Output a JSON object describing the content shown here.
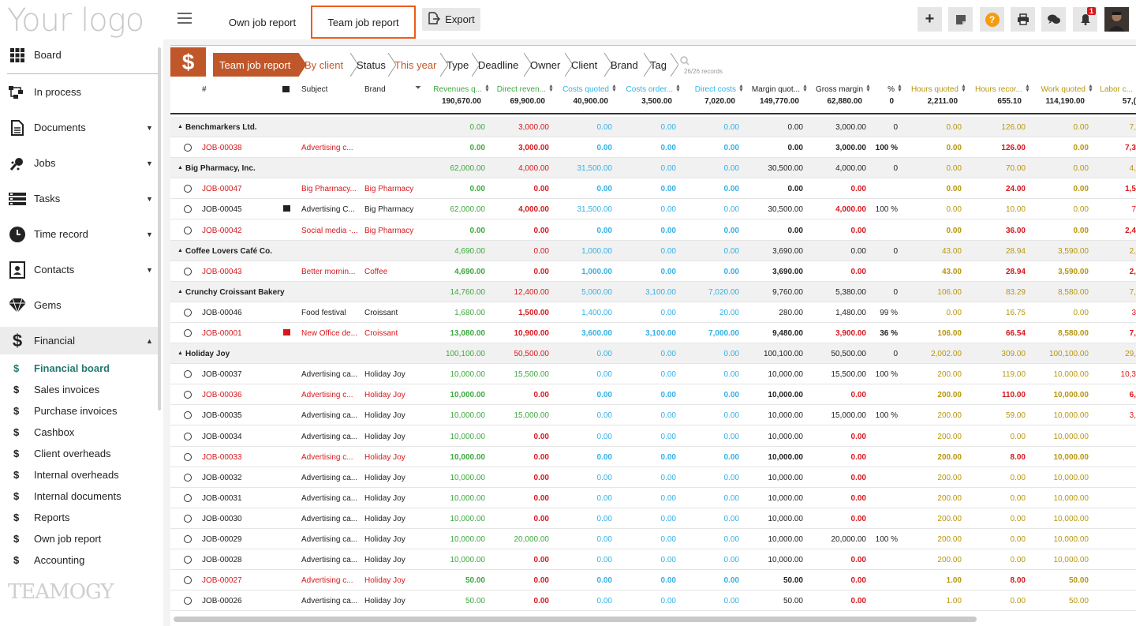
{
  "app": {
    "logo": "Your logo",
    "brand": "TEAMOGY"
  },
  "topbar": {
    "tabs": [
      "Own job report",
      "Team job report"
    ],
    "export_label": "Export",
    "notif_count": "1"
  },
  "sidebar": {
    "items": [
      "Board",
      "In process",
      "Documents",
      "Jobs",
      "Tasks",
      "Time record",
      "Contacts",
      "Gems",
      "Financial"
    ],
    "financial_sub": [
      "Financial board",
      "Sales invoices",
      "Purchase invoices",
      "Cashbox",
      "Client overheads",
      "Internal overheads",
      "Internal documents",
      "Reports",
      "Own job report",
      "Accounting"
    ]
  },
  "breadcrumbs": [
    "Team job report",
    "By client",
    "Status",
    "This year",
    "Type",
    "Deadline",
    "Owner",
    "Client",
    "Brand",
    "Tag"
  ],
  "records": "26/26 records",
  "columns": [
    "#",
    "Subject",
    "Brand",
    "Revenues q...",
    "Direct reven...",
    "Costs quoted",
    "Costs order...",
    "Direct costs",
    "Margin quot...",
    "Gross margin",
    "%",
    "Hours quoted",
    "Hours recor...",
    "Work quoted",
    "Labor c..."
  ],
  "totals": [
    "190,670.00",
    "69,900.00",
    "40,900.00",
    "3,500.00",
    "7,020.00",
    "149,770.00",
    "62,880.00",
    "0",
    "2,211.00",
    "655.10",
    "114,190.00",
    "57,("
  ],
  "rows": [
    {
      "t": "g",
      "name": "Benchmarkers Ltd.",
      "v": [
        "0.00",
        "3,000.00",
        "0.00",
        "0.00",
        "0.00",
        "0.00",
        "3,000.00",
        "0",
        "0.00",
        "126.00",
        "0.00",
        "7,"
      ]
    },
    {
      "t": "j",
      "id": "JOB-00038",
      "red": true,
      "subject": "Advertising c...",
      "brand": "",
      "v": [
        "0.00",
        "3,000.00",
        "0.00",
        "0.00",
        "0.00",
        "0.00",
        "3,000.00",
        "100 %",
        "0.00",
        "126.00",
        "0.00",
        "7,3"
      ]
    },
    {
      "t": "g",
      "name": "Big Pharmacy, Inc.",
      "v": [
        "62,000.00",
        "4,000.00",
        "31,500.00",
        "0.00",
        "0.00",
        "30,500.00",
        "4,000.00",
        "0",
        "0.00",
        "70.00",
        "0.00",
        "4,"
      ]
    },
    {
      "t": "j",
      "id": "JOB-00047",
      "red": true,
      "subject": "Big Pharmacy...",
      "brand": "Big Pharmacy",
      "v": [
        "0.00",
        "0.00",
        "0.00",
        "0.00",
        "0.00",
        "0.00",
        "0.00",
        "",
        "0.00",
        "24.00",
        "0.00",
        "1,5"
      ]
    },
    {
      "t": "j",
      "id": "JOB-00045",
      "red": false,
      "subject": "Advertising C...",
      "brand": "Big Pharmacy",
      "v": [
        "62,000.00",
        "4,000.00",
        "31,500.00",
        "0.00",
        "0.00",
        "30,500.00",
        "4,000.00",
        "100 %",
        "0.00",
        "10.00",
        "0.00",
        "7"
      ]
    },
    {
      "t": "j",
      "id": "JOB-00042",
      "red": true,
      "subject": "Social media -...",
      "brand": "Big Pharmacy",
      "v": [
        "0.00",
        "0.00",
        "0.00",
        "0.00",
        "0.00",
        "0.00",
        "0.00",
        "",
        "0.00",
        "36.00",
        "0.00",
        "2,4"
      ]
    },
    {
      "t": "g",
      "name": "Coffee Lovers Café Co.",
      "v": [
        "4,690.00",
        "0.00",
        "1,000.00",
        "0.00",
        "0.00",
        "3,690.00",
        "0.00",
        "0",
        "43.00",
        "28.94",
        "3,590.00",
        "2,"
      ]
    },
    {
      "t": "j",
      "id": "JOB-00043",
      "red": true,
      "subject": "Better mornin...",
      "brand": "Coffee",
      "v": [
        "4,690.00",
        "0.00",
        "1,000.00",
        "0.00",
        "0.00",
        "3,690.00",
        "0.00",
        "",
        "43.00",
        "28.94",
        "3,590.00",
        "2,"
      ]
    },
    {
      "t": "g",
      "name": "Crunchy Croissant Bakery",
      "v": [
        "14,760.00",
        "12,400.00",
        "5,000.00",
        "3,100.00",
        "7,020.00",
        "9,760.00",
        "5,380.00",
        "0",
        "106.00",
        "83.29",
        "8,580.00",
        "7,"
      ]
    },
    {
      "t": "j",
      "id": "JOB-00046",
      "red": false,
      "subject": "Food festival",
      "brand": "Croissant",
      "v": [
        "1,680.00",
        "1,500.00",
        "1,400.00",
        "0.00",
        "20.00",
        "280.00",
        "1,480.00",
        "99 %",
        "0.00",
        "16.75",
        "0.00",
        "3"
      ]
    },
    {
      "t": "j",
      "id": "JOB-00001",
      "red": true,
      "subject": "New Office de...",
      "brand": "Croissant",
      "v": [
        "13,080.00",
        "10,900.00",
        "3,600.00",
        "3,100.00",
        "7,000.00",
        "9,480.00",
        "3,900.00",
        "36 %",
        "106.00",
        "66.54",
        "8,580.00",
        "7,"
      ]
    },
    {
      "t": "g",
      "name": "Holiday Joy",
      "v": [
        "100,100.00",
        "50,500.00",
        "0.00",
        "0.00",
        "0.00",
        "100,100.00",
        "50,500.00",
        "0",
        "2,002.00",
        "309.00",
        "100,100.00",
        "29,"
      ]
    },
    {
      "t": "j",
      "id": "JOB-00037",
      "red": false,
      "subject": "Advertising ca...",
      "brand": "Holiday Joy",
      "v": [
        "10,000.00",
        "15,500.00",
        "0.00",
        "0.00",
        "0.00",
        "10,000.00",
        "15,500.00",
        "100 %",
        "200.00",
        "119.00",
        "10,000.00",
        "10,3"
      ]
    },
    {
      "t": "j",
      "id": "JOB-00036",
      "red": true,
      "subject": "Advertising c...",
      "brand": "Holiday Joy",
      "v": [
        "10,000.00",
        "0.00",
        "0.00",
        "0.00",
        "0.00",
        "10,000.00",
        "0.00",
        "",
        "200.00",
        "110.00",
        "10,000.00",
        "6,"
      ]
    },
    {
      "t": "j",
      "id": "JOB-00035",
      "red": false,
      "subject": "Advertising ca...",
      "brand": "Holiday Joy",
      "v": [
        "10,000.00",
        "15,000.00",
        "0.00",
        "0.00",
        "0.00",
        "10,000.00",
        "15,000.00",
        "100 %",
        "200.00",
        "59.00",
        "10,000.00",
        "3,"
      ]
    },
    {
      "t": "j",
      "id": "JOB-00034",
      "red": false,
      "subject": "Advertising ca...",
      "brand": "Holiday Joy",
      "v": [
        "10,000.00",
        "0.00",
        "0.00",
        "0.00",
        "0.00",
        "10,000.00",
        "0.00",
        "",
        "200.00",
        "0.00",
        "10,000.00",
        ""
      ]
    },
    {
      "t": "j",
      "id": "JOB-00033",
      "red": true,
      "subject": "Advertising c...",
      "brand": "Holiday Joy",
      "v": [
        "10,000.00",
        "0.00",
        "0.00",
        "0.00",
        "0.00",
        "10,000.00",
        "0.00",
        "",
        "200.00",
        "8.00",
        "10,000.00",
        ""
      ]
    },
    {
      "t": "j",
      "id": "JOB-00032",
      "red": false,
      "subject": "Advertising ca...",
      "brand": "Holiday Joy",
      "v": [
        "10,000.00",
        "0.00",
        "0.00",
        "0.00",
        "0.00",
        "10,000.00",
        "0.00",
        "",
        "200.00",
        "0.00",
        "10,000.00",
        ""
      ]
    },
    {
      "t": "j",
      "id": "JOB-00031",
      "red": false,
      "subject": "Advertising ca...",
      "brand": "Holiday Joy",
      "v": [
        "10,000.00",
        "0.00",
        "0.00",
        "0.00",
        "0.00",
        "10,000.00",
        "0.00",
        "",
        "200.00",
        "0.00",
        "10,000.00",
        ""
      ]
    },
    {
      "t": "j",
      "id": "JOB-00030",
      "red": false,
      "subject": "Advertising ca...",
      "brand": "Holiday Joy",
      "v": [
        "10,000.00",
        "0.00",
        "0.00",
        "0.00",
        "0.00",
        "10,000.00",
        "0.00",
        "",
        "200.00",
        "0.00",
        "10,000.00",
        ""
      ]
    },
    {
      "t": "j",
      "id": "JOB-00029",
      "red": false,
      "subject": "Advertising ca...",
      "brand": "Holiday Joy",
      "v": [
        "10,000.00",
        "20,000.00",
        "0.00",
        "0.00",
        "0.00",
        "10,000.00",
        "20,000.00",
        "100 %",
        "200.00",
        "0.00",
        "10,000.00",
        ""
      ]
    },
    {
      "t": "j",
      "id": "JOB-00028",
      "red": false,
      "subject": "Advertising ca...",
      "brand": "Holiday Joy",
      "v": [
        "10,000.00",
        "0.00",
        "0.00",
        "0.00",
        "0.00",
        "10,000.00",
        "0.00",
        "",
        "200.00",
        "0.00",
        "10,000.00",
        ""
      ]
    },
    {
      "t": "j",
      "id": "JOB-00027",
      "red": true,
      "subject": "Advertising c...",
      "brand": "Holiday Joy",
      "v": [
        "50.00",
        "0.00",
        "0.00",
        "0.00",
        "0.00",
        "50.00",
        "0.00",
        "",
        "1.00",
        "8.00",
        "50.00",
        ""
      ]
    },
    {
      "t": "j",
      "id": "JOB-00026",
      "red": false,
      "subject": "Advertising ca...",
      "brand": "Holiday Joy",
      "v": [
        "50.00",
        "0.00",
        "0.00",
        "0.00",
        "0.00",
        "50.00",
        "0.00",
        "",
        "1.00",
        "0.00",
        "50.00",
        ""
      ]
    }
  ]
}
